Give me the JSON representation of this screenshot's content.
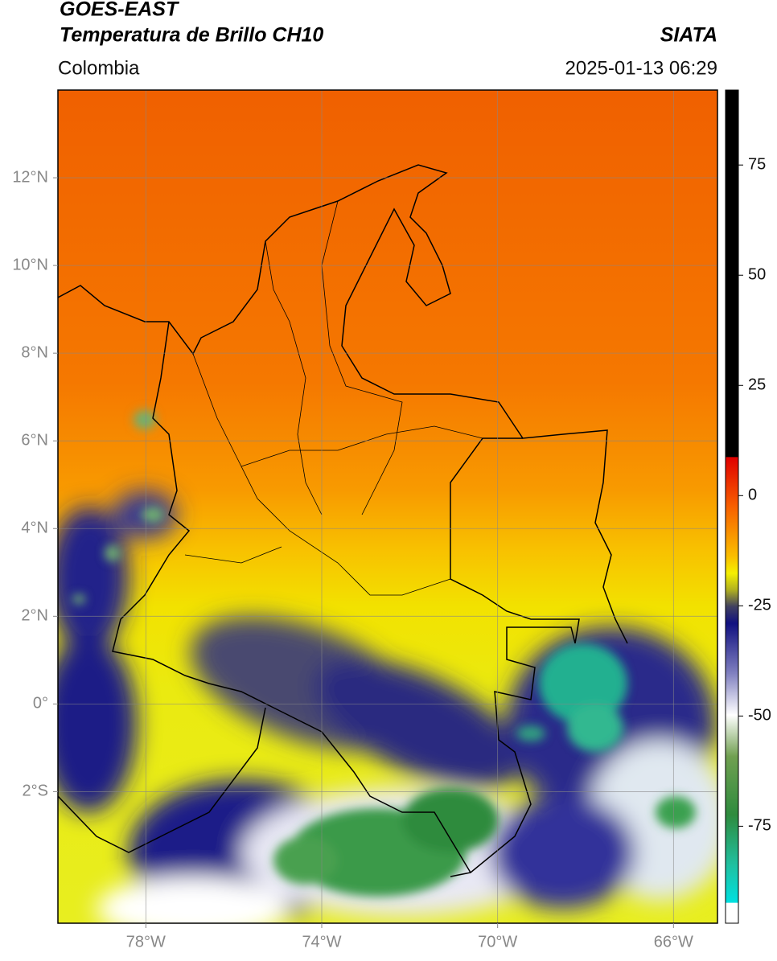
{
  "map": {
    "title": "GOES-EAST",
    "subtitle": "Temperatura de Brillo CH10",
    "source": "SIATA",
    "region": "Colombia",
    "datetime": "2025-01-13 06:29",
    "xlim": [
      -80,
      -65
    ],
    "ylim": [
      -5,
      14
    ],
    "xticks": [
      {
        "value": -78,
        "label": "78°W"
      },
      {
        "value": -74,
        "label": "74°W"
      },
      {
        "value": -70,
        "label": "70°W"
      },
      {
        "value": -66,
        "label": "66°W"
      }
    ],
    "yticks": [
      {
        "value": -2,
        "label": "2°S"
      },
      {
        "value": 0,
        "label": "0°"
      },
      {
        "value": 2,
        "label": "2°N"
      },
      {
        "value": 4,
        "label": "4°N"
      },
      {
        "value": 6,
        "label": "6°N"
      },
      {
        "value": 8,
        "label": "8°N"
      },
      {
        "value": 10,
        "label": "10°N"
      },
      {
        "value": 12,
        "label": "12°N"
      }
    ],
    "grid": true,
    "colorbar": {
      "lim": [
        -97,
        92
      ],
      "ticks": [
        75,
        50,
        25,
        0,
        -25,
        -50,
        -75
      ]
    }
  }
}
